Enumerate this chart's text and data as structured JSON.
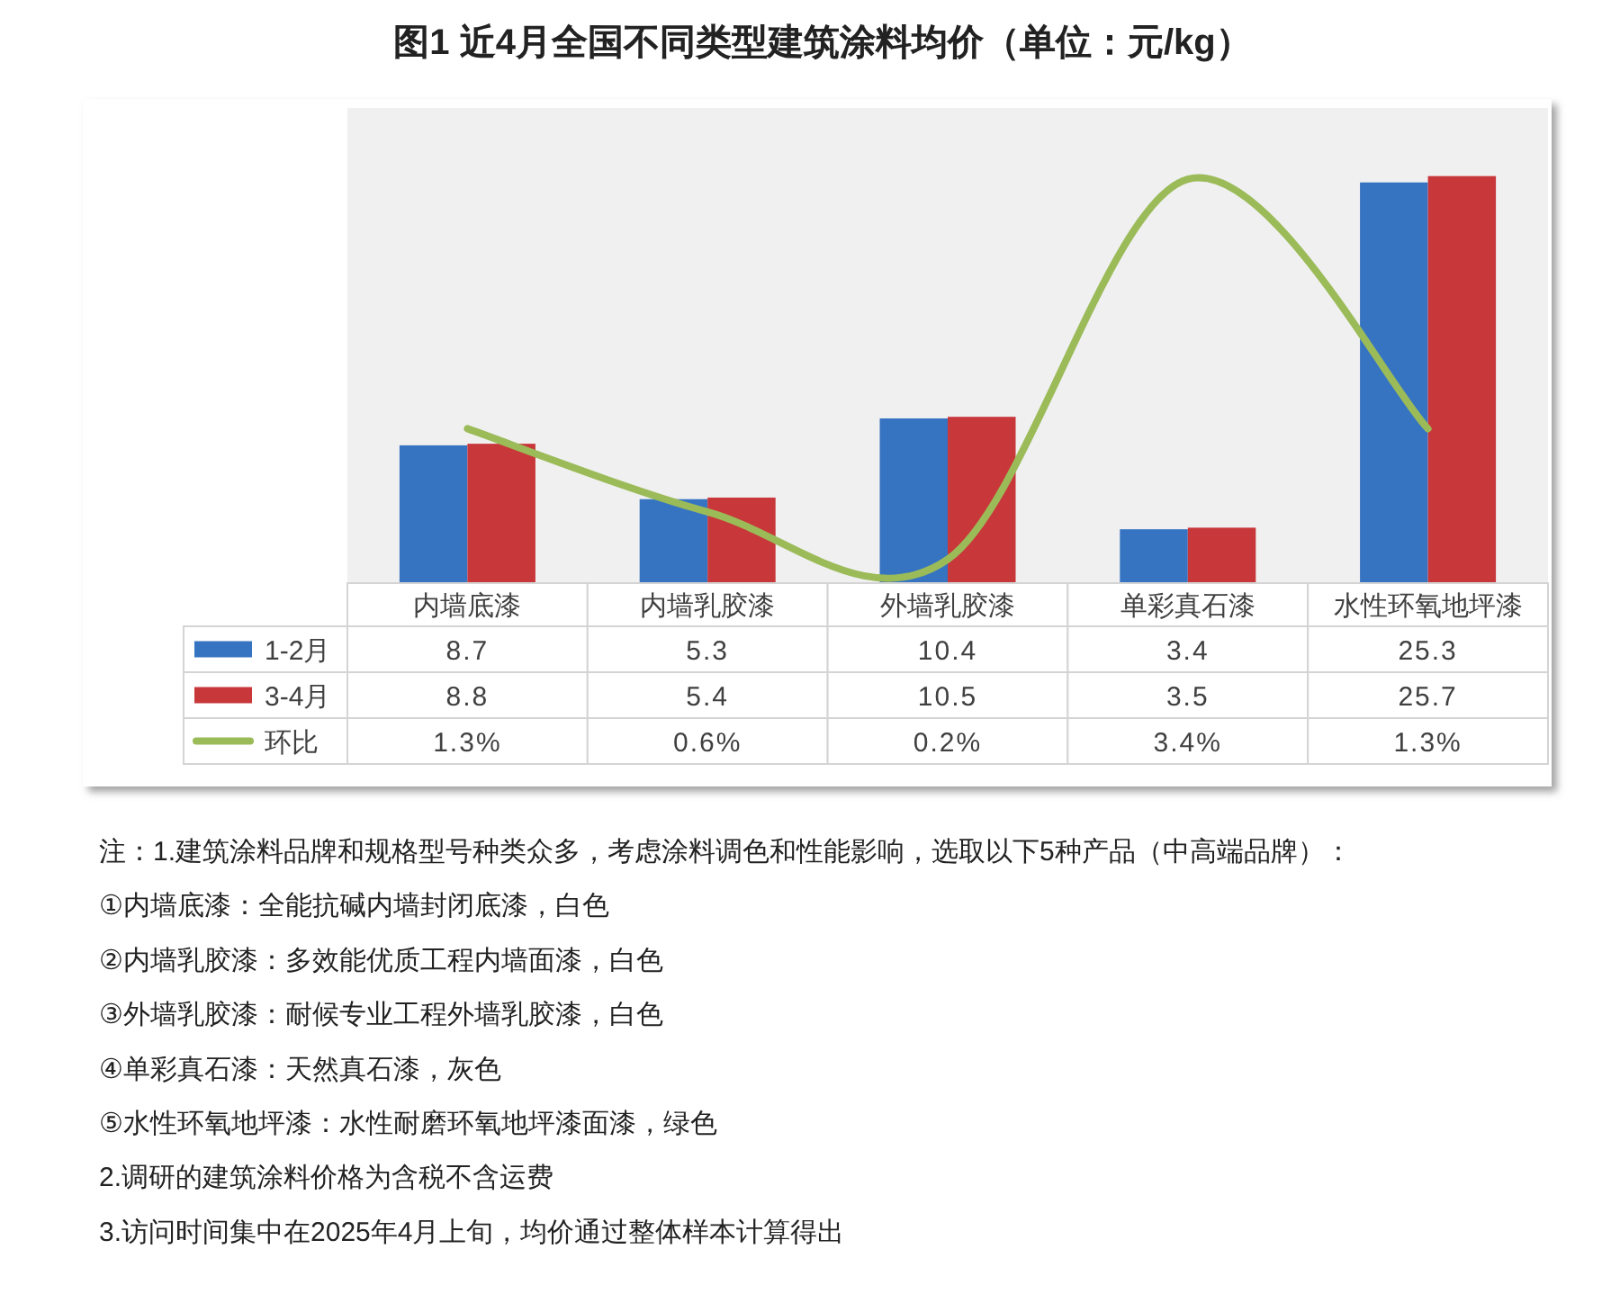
{
  "chart_data": {
    "type": "bar",
    "title": "图1 近4月全国不同类型建筑涂料均价（单位：元/kg）",
    "categories": [
      "内墙底漆",
      "内墙乳胶漆",
      "外墙乳胶漆",
      "单彩真石漆",
      "水性环氧地坪漆"
    ],
    "series": [
      {
        "name": "1-2月",
        "color": "#3674c2",
        "values": [
          8.7,
          5.3,
          10.4,
          3.4,
          25.3
        ],
        "value_labels": [
          "8.7",
          "5.3",
          "10.4",
          "3.4",
          "25.3"
        ]
      },
      {
        "name": "3-4月",
        "color": "#c8373a",
        "values": [
          8.8,
          5.4,
          10.5,
          3.5,
          25.7
        ],
        "value_labels": [
          "8.8",
          "5.4",
          "10.5",
          "3.5",
          "25.7"
        ]
      },
      {
        "name": "环比",
        "type": "line",
        "axis": "y2",
        "color": "#9bbb59",
        "values": [
          1.3,
          0.6,
          0.2,
          3.4,
          1.3
        ],
        "value_labels": [
          "1.3%",
          "0.6%",
          "0.2%",
          "3.4%",
          "1.3%"
        ]
      }
    ],
    "ylim": [
      0,
      30
    ],
    "y2lim": [
      0,
      4
    ],
    "tick_labels": "x",
    "legend": "bottom",
    "annotations": [
      "注：1.建筑涂料品牌和规格型号种类众多，考虑涂料调色和性能影响，选取以下5种产品（中高端品牌）：",
      "①内墙底漆：全能抗碱内墙封闭底漆，白色",
      "②内墙乳胶漆：多效能优质工程内墙面漆，白色",
      "③外墙乳胶漆：耐候专业工程外墙乳胶漆，白色",
      "④单彩真石漆：天然真石漆，灰色",
      "⑤水性环氧地坪漆：水性耐磨环氧地坪漆面漆，绿色",
      "2.调研的建筑涂料价格为含税不含运费",
      "3.访问时间集中在2025年4月上旬，均价通过整体样本计算得出"
    ]
  }
}
